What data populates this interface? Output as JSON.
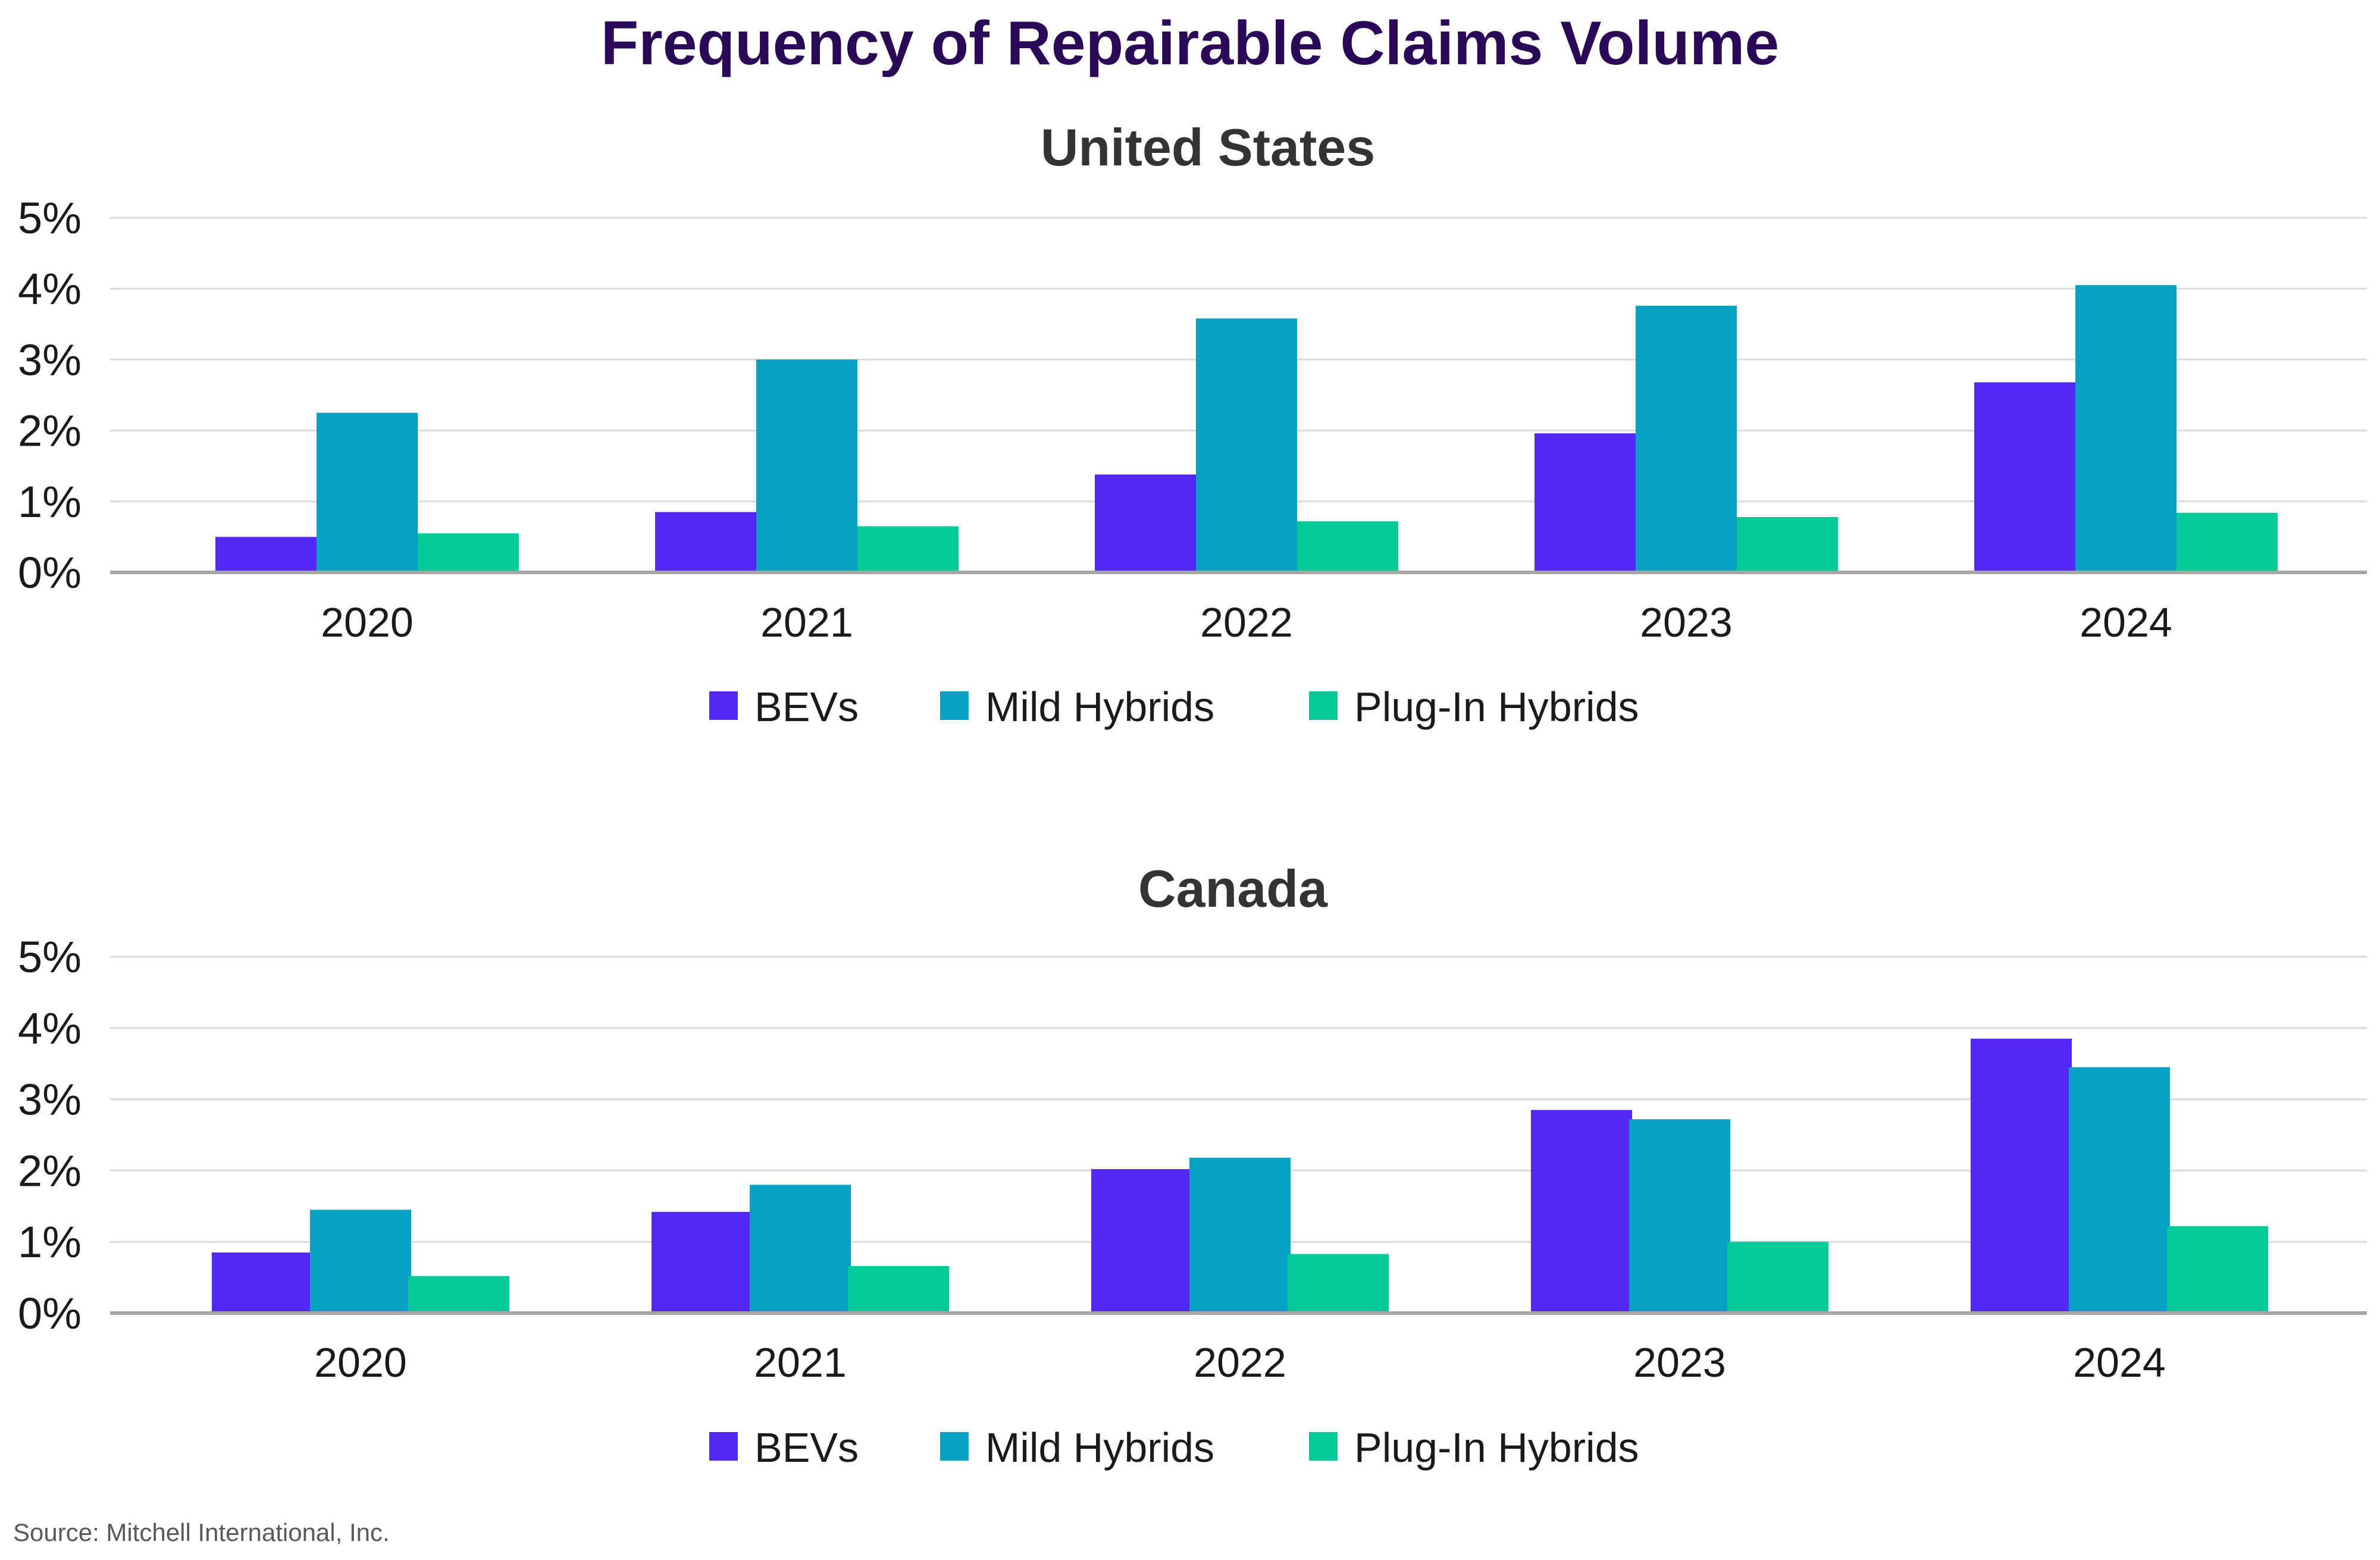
{
  "title": "Frequency of Repairable Claims Volume",
  "source": "Source: Mitchell International, Inc.",
  "chart_data": [
    {
      "type": "bar",
      "title": "United States",
      "categories": [
        "2020",
        "2021",
        "2022",
        "2023",
        "2024"
      ],
      "series": [
        {
          "name": "BEVs",
          "color": "#5327f5",
          "values": [
            0.5,
            0.85,
            1.38,
            1.96,
            2.68
          ]
        },
        {
          "name": "Mild Hybrids",
          "color": "#05a0c2",
          "values": [
            2.25,
            3.0,
            3.58,
            3.76,
            4.05
          ]
        },
        {
          "name": "Plug-In Hybrids",
          "color": "#05c997",
          "values": [
            0.55,
            0.65,
            0.72,
            0.78,
            0.84
          ]
        }
      ],
      "yticks": [
        "0%",
        "1%",
        "2%",
        "3%",
        "4%",
        "5%"
      ],
      "ylim": [
        0,
        5
      ],
      "grid": true,
      "legend": "bottom"
    },
    {
      "type": "bar",
      "title": "Canada",
      "categories": [
        "2020",
        "2021",
        "2022",
        "2023",
        "2024"
      ],
      "series": [
        {
          "name": "BEVs",
          "color": "#5327f5",
          "values": [
            0.85,
            1.42,
            2.02,
            2.85,
            3.85
          ]
        },
        {
          "name": "Mild Hybrids",
          "color": "#05a0c2",
          "values": [
            1.45,
            1.8,
            2.18,
            2.72,
            3.45
          ]
        },
        {
          "name": "Plug-In Hybrids",
          "color": "#05c997",
          "values": [
            0.52,
            0.66,
            0.83,
            1.0,
            1.22
          ]
        }
      ],
      "yticks": [
        "0%",
        "1%",
        "2%",
        "3%",
        "4%",
        "5%"
      ],
      "ylim": [
        0,
        5
      ],
      "grid": true,
      "legend": "bottom"
    }
  ]
}
